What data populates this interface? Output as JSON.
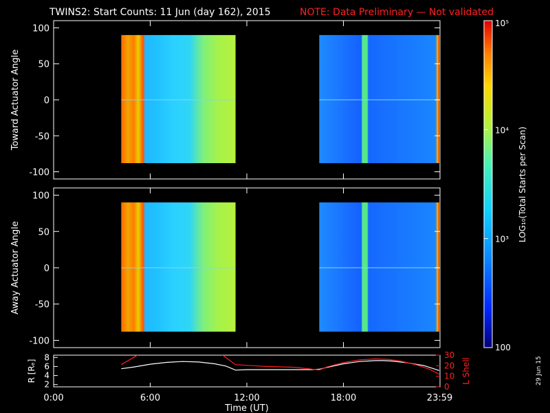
{
  "header": {
    "title": "TWINS2: Start Counts: 11 Jun (day 162), 2015",
    "note": "NOTE: Data Preliminary — Not validated"
  },
  "footer": {
    "date_stamp": "29 Jun 15"
  },
  "colors": {
    "background": "#000000",
    "foreground": "#ffffff",
    "note": "#ff2020",
    "lshell": "#ff2020",
    "radius": "#ffffff"
  },
  "chart_data": [
    {
      "type": "heatmap",
      "panel": "top",
      "ylabel": "Toward Actuator Angle",
      "xlim": [
        0,
        24
      ],
      "ylim": [
        -110,
        110
      ],
      "y_ticks": [
        "100",
        "50",
        "0",
        "-50",
        "-100"
      ],
      "x_ticks": [
        0,
        6,
        12,
        18,
        24
      ],
      "data_blocks": [
        {
          "x_start": 4.2,
          "x_end": 11.3,
          "y_start": -88,
          "y_end": 90
        },
        {
          "x_start": 16.5,
          "x_end": 23.95,
          "y_start": -88,
          "y_end": 90
        }
      ],
      "colorscale": "log"
    },
    {
      "type": "heatmap",
      "panel": "bottom",
      "ylabel": "Away Actuator Angle",
      "xlim": [
        0,
        24
      ],
      "ylim": [
        -110,
        110
      ],
      "y_ticks": [
        "100",
        "50",
        "0",
        "-50",
        "-100"
      ],
      "x_ticks": [
        0,
        6,
        12,
        18,
        24
      ],
      "data_blocks": [
        {
          "x_start": 4.2,
          "x_end": 11.3,
          "y_start": -88,
          "y_end": 90
        },
        {
          "x_start": 16.5,
          "x_end": 23.95,
          "y_start": -88,
          "y_end": 90
        }
      ],
      "colorscale": "log"
    },
    {
      "type": "line",
      "panel": "orbit",
      "xlabel": "Time (UT)",
      "x_tick_labels": [
        "0:00",
        "6:00",
        "12:00",
        "18:00",
        "23:59"
      ],
      "x_ticks": [
        0,
        6,
        12,
        18,
        23.98
      ],
      "left_axis": {
        "label": "R [Rₑ]",
        "ylim": [
          1.5,
          8.5
        ],
        "ticks": [
          "2",
          "4",
          "6",
          "8"
        ]
      },
      "right_axis": {
        "label": "L Shell",
        "ylim": [
          0,
          30
        ],
        "ticks": [
          "0",
          "10",
          "20",
          "30"
        ]
      },
      "series": [
        {
          "name": "R [Rₑ]",
          "axis": "left",
          "x": [
            4.2,
            5,
            6,
            7,
            8,
            9,
            10,
            10.7,
            11.3,
            12,
            13,
            14,
            15,
            16,
            16.5,
            17,
            18,
            19,
            20,
            20.5,
            21,
            22,
            23,
            23.95
          ],
          "y": [
            5.5,
            5.9,
            6.5,
            6.9,
            7.1,
            7.0,
            6.6,
            6.1,
            5.2,
            5.3,
            5.3,
            5.3,
            5.3,
            5.3,
            5.4,
            5.8,
            6.6,
            7.1,
            7.3,
            7.3,
            7.2,
            6.8,
            6.2,
            5.1
          ]
        },
        {
          "name": "L Shell",
          "axis": "right",
          "x": [
            4.2,
            5.2,
            5.4,
            10.1,
            10.5,
            11.3,
            13,
            15,
            16.5,
            17,
            18,
            19,
            20,
            20.8,
            21.5,
            22.5,
            23.3,
            23.95
          ],
          "y": [
            21,
            30,
            33,
            33,
            30,
            21,
            19.5,
            18.5,
            16,
            19,
            23,
            25.5,
            26.5,
            26,
            24.5,
            21,
            17,
            12
          ]
        }
      ]
    }
  ],
  "colorbar": {
    "label": "LOG₁₀(Total Starts per Scan)",
    "scale": "log",
    "min": 100,
    "max": 100000,
    "tick_labels": [
      "10⁵",
      "10⁴",
      "10³",
      "100"
    ],
    "tick_values": [
      100000,
      10000,
      1000,
      100
    ],
    "colors": [
      "#00007a",
      "#0028ff",
      "#0a8cff",
      "#10d0ff",
      "#46f3b6",
      "#b4f23a",
      "#ffd800",
      "#ff8000",
      "#e20000"
    ]
  }
}
